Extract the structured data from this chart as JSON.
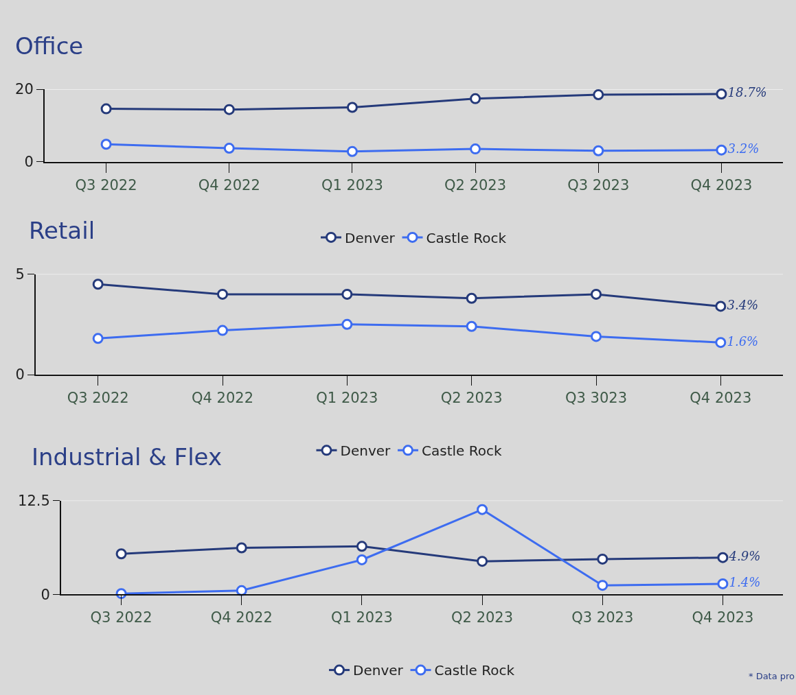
{
  "chart_data": [
    {
      "type": "line",
      "title": "Office",
      "categories": [
        "Q3 2022",
        "Q4 2022",
        "Q1 2023",
        "Q2 2023",
        "Q3 2023",
        "Q4 2023"
      ],
      "ylim": [
        0,
        20
      ],
      "yticks": [
        0,
        20
      ],
      "grid": "y",
      "legend": "bottom",
      "marker": "circle",
      "line_style": "solid",
      "series": [
        {
          "name": "Denver",
          "color": "#253a7a",
          "values": [
            14.6,
            14.4,
            15.0,
            17.4,
            18.5,
            18.7
          ],
          "value_labels": [
            null,
            null,
            null,
            null,
            null,
            "18.7%"
          ]
        },
        {
          "name": "Castle Rock",
          "color": "#3d6cf0",
          "values": [
            4.8,
            3.7,
            2.8,
            3.5,
            3.0,
            3.2
          ],
          "value_labels": [
            null,
            null,
            null,
            null,
            null,
            "3.2%"
          ]
        }
      ]
    },
    {
      "type": "line",
      "title": "Retail",
      "categories": [
        "Q3 2022",
        "Q4 2022",
        "Q1 2023",
        "Q2 2023",
        "Q3 3023",
        "Q4 2023"
      ],
      "ylim": [
        0,
        5
      ],
      "yticks": [
        0,
        5
      ],
      "grid": "y",
      "legend": "bottom",
      "marker": "circle",
      "line_style": "solid",
      "series": [
        {
          "name": "Denver",
          "color": "#253a7a",
          "values": [
            4.5,
            4.0,
            4.0,
            3.8,
            4.0,
            3.4
          ],
          "value_labels": [
            null,
            null,
            null,
            null,
            null,
            "3.4%"
          ]
        },
        {
          "name": "Castle Rock",
          "color": "#3d6cf0",
          "values": [
            1.8,
            2.2,
            2.5,
            2.4,
            1.9,
            1.6
          ],
          "value_labels": [
            null,
            null,
            null,
            null,
            null,
            "1.6%"
          ]
        }
      ]
    },
    {
      "type": "line",
      "title": "Industrial & Flex",
      "categories": [
        "Q3 2022",
        "Q4 2022",
        "Q1 2023",
        "Q2 2023",
        "Q3 2023",
        "Q4 2023"
      ],
      "ylim": [
        0,
        12.5
      ],
      "yticks": [
        0,
        12.5
      ],
      "grid": "y",
      "legend": "bottom",
      "marker": "circle",
      "line_style": "solid",
      "annotations": [
        "* Data pro"
      ],
      "series": [
        {
          "name": "Denver",
          "color": "#253a7a",
          "values": [
            5.4,
            6.2,
            6.4,
            4.4,
            4.7,
            4.9
          ],
          "value_labels": [
            null,
            null,
            null,
            null,
            null,
            "4.9%"
          ]
        },
        {
          "name": "Castle Rock",
          "color": "#3d6cf0",
          "values": [
            0.1,
            0.5,
            4.6,
            11.3,
            1.2,
            1.4
          ],
          "value_labels": [
            null,
            null,
            null,
            null,
            null,
            "1.4%"
          ]
        }
      ]
    }
  ]
}
